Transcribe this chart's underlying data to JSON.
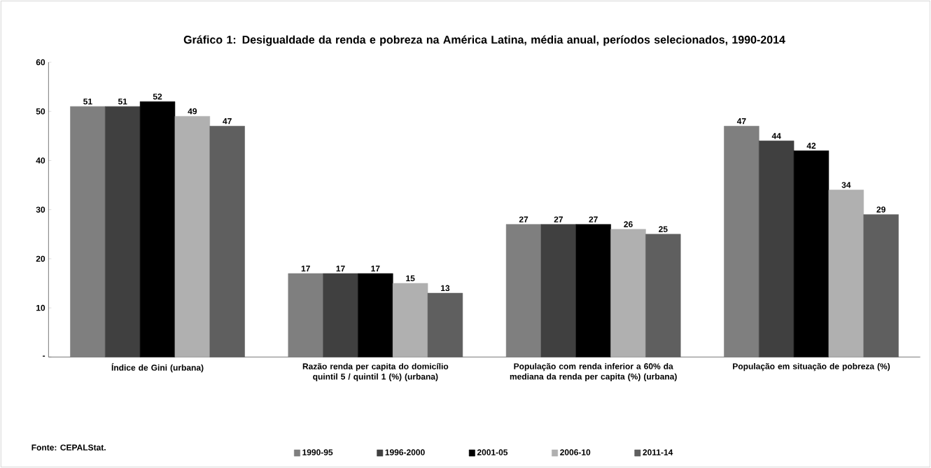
{
  "chart_data": {
    "type": "bar",
    "title": "Gráfico 1: Desigualdade da renda e pobreza na América Latina, média anual, períodos selecionados, 1990-2014",
    "categories": [
      "Índice de Gini (urbana)",
      "Razão renda per capita do domicílio quintil 5 / quintil 1 (%) (urbana)",
      "População com renda inferior a 60% da mediana da renda per capita (%) (urbana)",
      "População em situação de pobreza (%)"
    ],
    "series": [
      {
        "name": "1990-95",
        "color": "#7f7f7f",
        "values": [
          51,
          17,
          27,
          47
        ]
      },
      {
        "name": "1996-2000",
        "color": "#404040",
        "values": [
          51,
          17,
          27,
          44
        ]
      },
      {
        "name": "2001-05",
        "color": "#000000",
        "values": [
          52,
          17,
          27,
          42
        ]
      },
      {
        "name": "2006-10",
        "color": "#b0b0b0",
        "values": [
          49,
          15,
          26,
          34
        ]
      },
      {
        "name": "2011-14",
        "color": "#5f5f5f",
        "values": [
          47,
          13,
          25,
          29
        ]
      }
    ],
    "ylim": [
      0,
      60
    ],
    "yticks": [
      {
        "value": 0,
        "label": "-"
      },
      10,
      20,
      30,
      40,
      50,
      60
    ],
    "data_labels": true,
    "legend": "bottom",
    "annotations": [
      "Fonte: CEPALStat."
    ]
  }
}
